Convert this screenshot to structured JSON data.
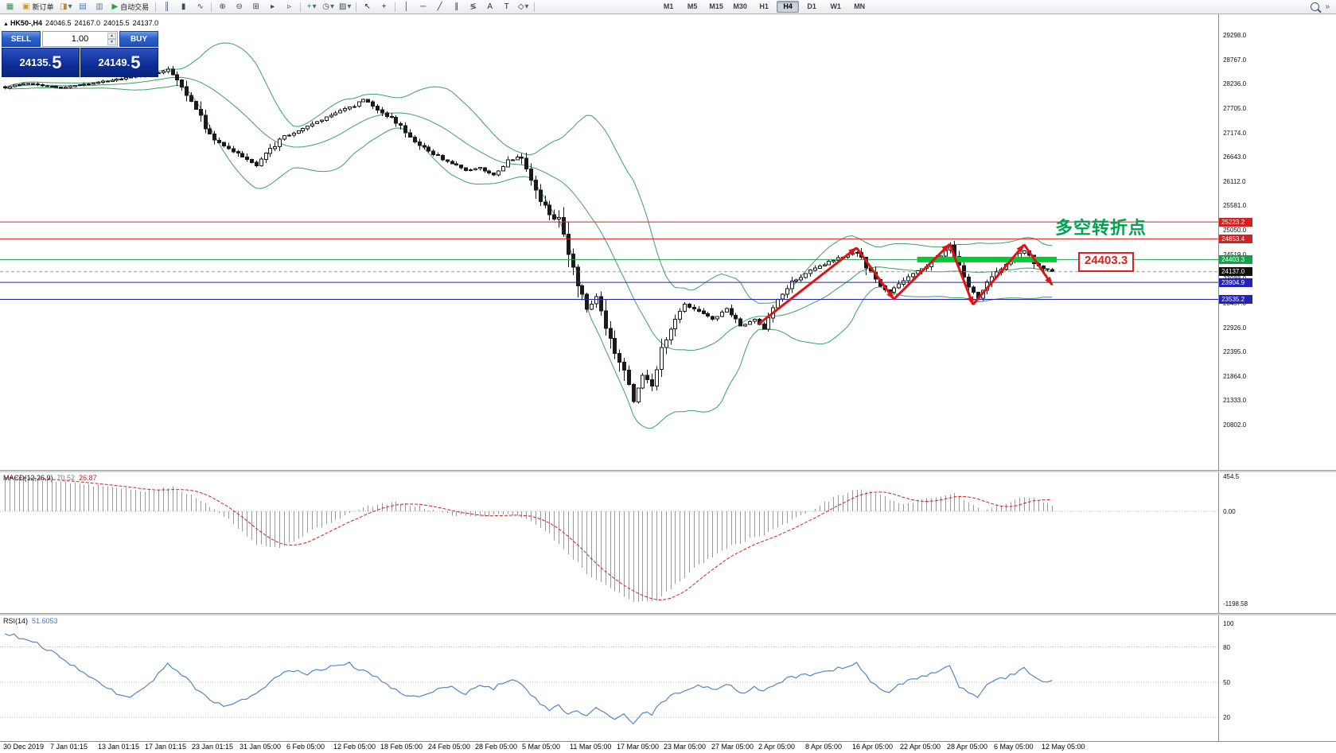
{
  "colors": {
    "bollinger": "#3aa066",
    "candle_up": "#ffffff",
    "candle_down": "#1a1a1a",
    "candle_border": "#1a1a1a",
    "macd_hist": "#9a9a9a",
    "macd_signal": "#d42020",
    "rsi_line": "#4f86c8",
    "zigzag": "#e01212",
    "level_red": "#d42020",
    "level_blue": "#2222bb",
    "level_green": "#1ba352",
    "current_price_label": "#101010"
  },
  "toolbar": {
    "items": [
      {
        "t": "icon",
        "n": "new-chart-button",
        "g": "▦",
        "c": "#3c8f55"
      },
      {
        "t": "btn",
        "n": "new-order-button",
        "g": "▣",
        "c": "#c29a36",
        "label": "新订单"
      },
      {
        "t": "icon",
        "n": "chart-profiles-button",
        "g": "◨",
        "c": "#b09035",
        "caret": true
      },
      {
        "t": "icon",
        "n": "market-watch-button",
        "g": "▤",
        "c": "#4f74bd"
      },
      {
        "t": "icon",
        "n": "navigator-button",
        "g": "▥",
        "c": "#6f7d93"
      },
      {
        "t": "btn",
        "n": "autotrading-button",
        "g": "▶",
        "c": "#21a63f",
        "label": "自动交易"
      },
      {
        "t": "sep"
      },
      {
        "t": "icon",
        "n": "bar-chart-button",
        "g": "║",
        "c": "#3d4a5c"
      },
      {
        "t": "icon",
        "n": "candlestick-chart-button",
        "g": "▮",
        "c": "#3d4a5c"
      },
      {
        "t": "icon",
        "n": "line-chart-button",
        "g": "∿",
        "c": "#3d4a5c"
      },
      {
        "t": "sep"
      },
      {
        "t": "icon",
        "n": "zoom-in-button",
        "g": "⊕",
        "c": "#3d4a5c"
      },
      {
        "t": "icon",
        "n": "zoom-out-button",
        "g": "⊖",
        "c": "#3d4a5c"
      },
      {
        "t": "icon",
        "n": "tile-windows-button",
        "g": "⊞",
        "c": "#3d4a5c"
      },
      {
        "t": "icon",
        "n": "auto-scroll-button",
        "g": "▸",
        "c": "#3d4a5c"
      },
      {
        "t": "icon",
        "n": "chart-shift-button",
        "g": "▹",
        "c": "#3d4a5c"
      },
      {
        "t": "sep"
      },
      {
        "t": "icon",
        "n": "indicators-button",
        "g": "+",
        "c": "#1d9e3c",
        "caret": true
      },
      {
        "t": "icon",
        "n": "periods-button",
        "g": "◷",
        "c": "#3d4a5c",
        "caret": true
      },
      {
        "t": "icon",
        "n": "templates-button",
        "g": "▨",
        "c": "#3d4a5c",
        "caret": true
      },
      {
        "t": "sep"
      },
      {
        "t": "icon",
        "n": "cursor-button",
        "g": "↖",
        "c": "#26303e"
      },
      {
        "t": "icon",
        "n": "crosshair-button",
        "g": "+",
        "c": "#26303e"
      },
      {
        "t": "sep"
      },
      {
        "t": "icon",
        "n": "vertical-line-button",
        "g": "│",
        "c": "#26303e"
      },
      {
        "t": "icon",
        "n": "horizontal-line-button",
        "g": "─",
        "c": "#26303e"
      },
      {
        "t": "icon",
        "n": "trendline-button",
        "g": "╱",
        "c": "#26303e"
      },
      {
        "t": "icon",
        "n": "channel-button",
        "g": "∥",
        "c": "#26303e"
      },
      {
        "t": "icon",
        "n": "fibonacci-button",
        "g": "≶",
        "c": "#26303e"
      },
      {
        "t": "icon",
        "n": "text-button",
        "g": "A",
        "c": "#26303e"
      },
      {
        "t": "icon",
        "n": "label-button",
        "g": "T",
        "c": "#26303e"
      },
      {
        "t": "icon",
        "n": "arrows-button",
        "g": "◇",
        "c": "#26303e",
        "caret": true
      },
      {
        "t": "sep"
      },
      {
        "t": "gap"
      }
    ],
    "timeframes": [
      "M1",
      "M5",
      "M15",
      "M30",
      "H1",
      "H4",
      "D1",
      "W1",
      "MN"
    ],
    "active_timeframe": "H4"
  },
  "header": {
    "symbol": "HK50-,H4",
    "open": "24046.5",
    "high": "24167.0",
    "low": "24015.5",
    "close": "24137.0"
  },
  "trade_panel": {
    "sell_label": "SELL",
    "buy_label": "BUY",
    "volume": "1.00",
    "sell_price": "24135.",
    "sell_price_big": "5",
    "buy_price": "24149.",
    "buy_price_big": "5"
  },
  "annotations": {
    "turning_point": "多空转折点",
    "price_box": "24403.3"
  },
  "chart_data": [
    {
      "type": "candlestick",
      "title": "HK50-,H4",
      "last_ohlc": [
        24046.5,
        24167.0,
        24015.5,
        24137.0
      ],
      "last_close": 24137.0,
      "ylim": [
        19816,
        29750
      ],
      "bars": 226,
      "bar_spacing": 5.85,
      "x_offset": 6,
      "price_path": [
        [
          0,
          28150
        ],
        [
          4,
          28250
        ],
        [
          12,
          28150
        ],
        [
          22,
          28300
        ],
        [
          33,
          28480
        ],
        [
          35,
          28550
        ],
        [
          38,
          28150
        ],
        [
          42,
          27500
        ],
        [
          44,
          27100
        ],
        [
          47,
          26900
        ],
        [
          51,
          26650
        ],
        [
          54,
          26450
        ],
        [
          57,
          26800
        ],
        [
          60,
          27100
        ],
        [
          64,
          27250
        ],
        [
          67,
          27400
        ],
        [
          71,
          27600
        ],
        [
          75,
          27750
        ],
        [
          77,
          27900
        ],
        [
          80,
          27650
        ],
        [
          83,
          27500
        ],
        [
          86,
          27200
        ],
        [
          89,
          26900
        ],
        [
          92,
          26700
        ],
        [
          96,
          26500
        ],
        [
          99,
          26350
        ],
        [
          102,
          26400
        ],
        [
          105,
          26250
        ],
        [
          108,
          26550
        ],
        [
          111,
          26650
        ],
        [
          113,
          26100
        ],
        [
          115,
          25700
        ],
        [
          117,
          25400
        ],
        [
          119,
          25250
        ],
        [
          121,
          24500
        ],
        [
          123,
          23900
        ],
        [
          125,
          23300
        ],
        [
          127,
          23600
        ],
        [
          129,
          23000
        ],
        [
          131,
          22400
        ],
        [
          133,
          22000
        ],
        [
          135,
          21300
        ],
        [
          137,
          21900
        ],
        [
          139,
          21600
        ],
        [
          141,
          22500
        ],
        [
          143,
          22900
        ],
        [
          146,
          23400
        ],
        [
          149,
          23300
        ],
        [
          152,
          23100
        ],
        [
          155,
          23350
        ],
        [
          158,
          22950
        ],
        [
          161,
          23100
        ],
        [
          163,
          22900
        ],
        [
          166,
          23500
        ],
        [
          169,
          23900
        ],
        [
          172,
          24100
        ],
        [
          175,
          24250
        ],
        [
          178,
          24400
        ],
        [
          181,
          24500
        ],
        [
          183,
          24570
        ],
        [
          186,
          24100
        ],
        [
          188,
          23800
        ],
        [
          190,
          23700
        ],
        [
          192,
          23900
        ],
        [
          195,
          24100
        ],
        [
          198,
          24250
        ],
        [
          201,
          24500
        ],
        [
          203,
          24700
        ],
        [
          205,
          24300
        ],
        [
          207,
          23800
        ],
        [
          209,
          23550
        ],
        [
          211,
          23900
        ],
        [
          214,
          24200
        ],
        [
          217,
          24450
        ],
        [
          219,
          24600
        ],
        [
          221,
          24350
        ],
        [
          223,
          24200
        ],
        [
          225,
          24137
        ]
      ],
      "bollinger": {
        "period": 20,
        "deviations": 2
      },
      "hlines": [
        {
          "price": 25223.2,
          "color": "#d42020",
          "w": 1
        },
        {
          "price": 24853.4,
          "color": "#d42020",
          "w": 1
        },
        {
          "price": 24403.3,
          "color": "#1ba352",
          "w": 1
        },
        {
          "price": 24137.0,
          "color": "#9a9a9a",
          "w": 1,
          "dash": "4,3"
        },
        {
          "price": 23904.9,
          "color": "#2222bb",
          "w": 1
        },
        {
          "price": 23535.2,
          "color": "#2222bb",
          "w": 1
        }
      ],
      "highlight_segment": {
        "price": 24403.3,
        "bar_from": 196,
        "bar_to": 226,
        "color": "#00cc32",
        "width": 7
      },
      "zigzag": [
        [
          162,
          23000
        ],
        [
          183,
          24660
        ],
        [
          191,
          23540
        ],
        [
          203,
          24740
        ],
        [
          208,
          23420
        ],
        [
          219,
          24730
        ],
        [
          225,
          23850
        ]
      ],
      "y_axis_labels": [
        [
          29298,
          "29298.0"
        ],
        [
          28767,
          "28767.0"
        ],
        [
          28236,
          "28236.0"
        ],
        [
          27705,
          "27705.0"
        ],
        [
          27174,
          "27174.0"
        ],
        [
          26643,
          "26643.0"
        ],
        [
          26112,
          "26112.0"
        ],
        [
          25581,
          "25581.0"
        ],
        [
          25050,
          "25050.0"
        ],
        [
          24519,
          "24519.0"
        ],
        [
          23988,
          "23988.0"
        ],
        [
          23457,
          "23457.0"
        ],
        [
          22926,
          "22926.0"
        ],
        [
          22395,
          "22395.0"
        ],
        [
          21864,
          "21864.0"
        ],
        [
          21333,
          "21333.0"
        ],
        [
          20802,
          "20802.0"
        ]
      ],
      "marked_prices": [
        {
          "text": "25223.2",
          "price": 25223.2,
          "bg": "#d42020"
        },
        {
          "text": "24853.4",
          "price": 24853.4,
          "bg": "#d42020"
        },
        {
          "text": "24403.3",
          "price": 24403.3,
          "bg": "#12a24a"
        },
        {
          "text": "24137.0",
          "price": 24137.0,
          "bg": "#101010"
        },
        {
          "text": "23904.9",
          "price": 23904.9,
          "bg": "#2222bb"
        },
        {
          "text": "23535.2",
          "price": 23535.2,
          "bg": "#2222bb"
        }
      ],
      "x_tick_labels": [
        "30 Dec 2019",
        "7 Jan 01:15",
        "13 Jan 01:15",
        "17 Jan 01:15",
        "23 Jan 01:15",
        "31 Jan 05:00",
        "6 Feb 05:00",
        "12 Feb 05:00",
        "18 Feb 05:00",
        "24 Feb 05:00",
        "28 Feb 05:00",
        "5 Mar 05:00",
        "11 Mar 05:00",
        "17 Mar 05:00",
        "23 Mar 05:00",
        "27 Mar 05:00",
        "2 Apr 05:00",
        "8 Apr 05:00",
        "16 Apr 05:00",
        "22 Apr 05:00",
        "28 Apr 05:00",
        "6 May 05:00",
        "12 May 05:00"
      ]
    },
    {
      "type": "bar",
      "name": "MACD(12,26,9)",
      "v1": "70.52",
      "v2": "26.87",
      "last_value": 70.52,
      "ylim": [
        -1320,
        505
      ],
      "axis_labels": [
        {
          "v": 454.5,
          "text": "454.5"
        },
        {
          "v": 0,
          "text": "0.00"
        },
        {
          "v": -1198.58,
          "text": "-1198.58"
        }
      ],
      "signal_period": 9,
      "path": [
        [
          0,
          440
        ],
        [
          10,
          400
        ],
        [
          20,
          330
        ],
        [
          30,
          260
        ],
        [
          36,
          310
        ],
        [
          40,
          200
        ],
        [
          45,
          40
        ],
        [
          49,
          -160
        ],
        [
          54,
          -420
        ],
        [
          59,
          -480
        ],
        [
          64,
          -310
        ],
        [
          71,
          -110
        ],
        [
          77,
          50
        ],
        [
          83,
          115
        ],
        [
          89,
          55
        ],
        [
          96,
          -45
        ],
        [
          102,
          -65
        ],
        [
          108,
          -25
        ],
        [
          113,
          -120
        ],
        [
          117,
          -300
        ],
        [
          121,
          -550
        ],
        [
          125,
          -800
        ],
        [
          129,
          -960
        ],
        [
          133,
          -1100
        ],
        [
          136,
          -1190
        ],
        [
          140,
          -1150
        ],
        [
          144,
          -950
        ],
        [
          149,
          -700
        ],
        [
          154,
          -500
        ],
        [
          159,
          -380
        ],
        [
          163,
          -300
        ],
        [
          167,
          -180
        ],
        [
          171,
          -60
        ],
        [
          175,
          80
        ],
        [
          179,
          200
        ],
        [
          183,
          285
        ],
        [
          187,
          240
        ],
        [
          190,
          150
        ],
        [
          193,
          100
        ],
        [
          197,
          140
        ],
        [
          201,
          205
        ],
        [
          204,
          230
        ],
        [
          207,
          120
        ],
        [
          210,
          15
        ],
        [
          213,
          60
        ],
        [
          217,
          145
        ],
        [
          220,
          190
        ],
        [
          223,
          115
        ],
        [
          225,
          70.52
        ]
      ]
    },
    {
      "type": "line",
      "name": "RSI(14)",
      "value": "51.6053",
      "last_value": 51.6,
      "ylim": [
        -0.1,
        106.8
      ],
      "levels": [
        {
          "v": 100,
          "text": "100",
          "line": false
        },
        {
          "v": 80,
          "text": "80",
          "line": true
        },
        {
          "v": 50,
          "text": "50",
          "line": true
        },
        {
          "v": 20,
          "text": "20",
          "line": true
        }
      ],
      "path": [
        [
          0,
          92
        ],
        [
          6,
          85
        ],
        [
          10,
          76
        ],
        [
          14,
          66
        ],
        [
          18,
          56
        ],
        [
          21,
          47
        ],
        [
          24,
          41
        ],
        [
          27,
          37
        ],
        [
          30,
          45
        ],
        [
          33,
          57
        ],
        [
          35,
          65
        ],
        [
          38,
          57
        ],
        [
          41,
          45
        ],
        [
          44,
          35
        ],
        [
          48,
          29
        ],
        [
          52,
          36
        ],
        [
          55,
          44
        ],
        [
          59,
          56
        ],
        [
          62,
          60
        ],
        [
          65,
          57
        ],
        [
          68,
          61
        ],
        [
          71,
          64
        ],
        [
          74,
          66
        ],
        [
          77,
          59
        ],
        [
          80,
          54
        ],
        [
          83,
          46
        ],
        [
          86,
          40
        ],
        [
          89,
          37
        ],
        [
          92,
          43
        ],
        [
          96,
          46
        ],
        [
          99,
          40
        ],
        [
          102,
          48
        ],
        [
          105,
          45
        ],
        [
          108,
          52
        ],
        [
          111,
          49
        ],
        [
          113,
          39
        ],
        [
          115,
          32
        ],
        [
          117,
          27
        ],
        [
          119,
          30
        ],
        [
          121,
          23
        ],
        [
          123,
          27
        ],
        [
          125,
          20
        ],
        [
          127,
          29
        ],
        [
          129,
          23
        ],
        [
          131,
          19
        ],
        [
          133,
          22
        ],
        [
          135,
          15
        ],
        [
          137,
          25
        ],
        [
          139,
          23
        ],
        [
          141,
          33
        ],
        [
          143,
          38
        ],
        [
          146,
          44
        ],
        [
          149,
          48
        ],
        [
          152,
          43
        ],
        [
          155,
          49
        ],
        [
          158,
          40
        ],
        [
          161,
          46
        ],
        [
          163,
          42
        ],
        [
          166,
          50
        ],
        [
          169,
          54
        ],
        [
          172,
          56
        ],
        [
          175,
          58
        ],
        [
          178,
          61
        ],
        [
          181,
          64
        ],
        [
          183,
          66
        ],
        [
          186,
          51
        ],
        [
          188,
          45
        ],
        [
          190,
          42
        ],
        [
          192,
          48
        ],
        [
          195,
          52
        ],
        [
          198,
          56
        ],
        [
          201,
          61
        ],
        [
          203,
          64
        ],
        [
          205,
          47
        ],
        [
          207,
          41
        ],
        [
          209,
          38
        ],
        [
          211,
          48
        ],
        [
          214,
          53
        ],
        [
          217,
          57
        ],
        [
          219,
          64
        ],
        [
          221,
          54
        ],
        [
          223,
          49
        ],
        [
          225,
          51.6
        ]
      ]
    }
  ]
}
